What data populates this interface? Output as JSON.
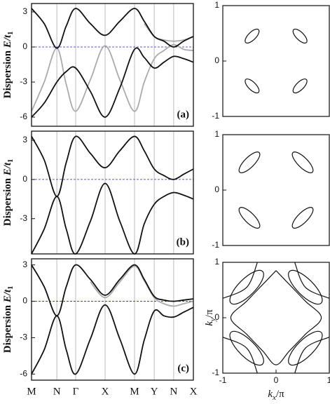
{
  "chart_data": [
    {
      "type": "line",
      "panel_label": "(a)",
      "ylabel": {
        "text": "Dispersion ",
        "var": "E",
        "rest": "/t",
        "sub": "1"
      },
      "ylim": [
        -6.78,
        3.72
      ],
      "yticks": [
        -6,
        -3,
        0,
        3
      ],
      "reference_line": 0,
      "reference_color": "#2222cc",
      "x": [
        0,
        0.43,
        0.86,
        1.18,
        1.5,
        2.0,
        2.5,
        3.0,
        3.5,
        3.83,
        4.17,
        4.5,
        4.83,
        5.17,
        5.5
      ],
      "series": [
        {
          "color": "#aaaaaa",
          "values": [
            -5.5,
            -3.0,
            -0.1,
            -3.2,
            -5.5,
            -2.8,
            0.1,
            -2.8,
            -5.5,
            -3.0,
            -1.0,
            -0.3,
            0.2,
            -0.2,
            -0.3
          ]
        },
        {
          "color": "#aaaaaa",
          "values": [
            null,
            null,
            null,
            null,
            null,
            null,
            null,
            null,
            null,
            2.0,
            0.9,
            0.6,
            0.5,
            0.6,
            0.9
          ]
        },
        {
          "color": "#111111",
          "values": [
            3.3,
            2.0,
            -0.1,
            1.8,
            3.3,
            2.0,
            1.0,
            2.2,
            3.3,
            2.2,
            0.9,
            0.5,
            0.0,
            0.5,
            0.9
          ]
        },
        {
          "color": "#111111",
          "values": [
            -6,
            -4.8,
            -3.0,
            -2.1,
            -1.8,
            -3.8,
            -6,
            -3.5,
            -0.2,
            -0.9,
            -1.8,
            -1.3,
            -0.8,
            -1.0,
            -1.3
          ]
        }
      ]
    },
    {
      "type": "contour",
      "xlim": [
        -1,
        1
      ],
      "ylim": [
        -1,
        1
      ],
      "yticks": [
        -1,
        0,
        1
      ],
      "ellipses": [
        {
          "cx": -0.45,
          "cy": 0.45,
          "rx": 0.17,
          "ry": 0.07,
          "angle": 45
        },
        {
          "cx": 0.45,
          "cy": 0.45,
          "rx": 0.17,
          "ry": 0.07,
          "angle": -45
        },
        {
          "cx": -0.45,
          "cy": -0.45,
          "rx": 0.17,
          "ry": 0.07,
          "angle": -45
        },
        {
          "cx": 0.45,
          "cy": -0.45,
          "rx": 0.17,
          "ry": 0.07,
          "angle": 45
        }
      ]
    },
    {
      "type": "line",
      "panel_label": "(b)",
      "ylabel": {
        "text": "Dispersion ",
        "var": "E",
        "rest": "/t",
        "sub": "1"
      },
      "ylim": [
        -5.7,
        3.7
      ],
      "yticks": [
        -3,
        0,
        3
      ],
      "reference_line": 0,
      "reference_color": "#2222cc",
      "x": [
        0,
        0.43,
        0.86,
        1.18,
        1.5,
        2.0,
        2.5,
        3.0,
        3.5,
        3.83,
        4.17,
        4.5,
        4.83,
        5.17,
        5.5
      ],
      "series": [
        {
          "color": "#111111",
          "values": [
            3.3,
            1.5,
            -1.3,
            1.3,
            3.3,
            2.0,
            0.9,
            2.2,
            3.3,
            2.2,
            0.8,
            0.3,
            0.0,
            0.4,
            0.8
          ]
        },
        {
          "color": "#111111",
          "values": [
            -5.7,
            -3.8,
            -1.3,
            -3.8,
            -5.7,
            -3.2,
            -0.3,
            -3.2,
            -5.7,
            -3.4,
            -1.9,
            -1.3,
            -1.0,
            -1.2,
            -1.5
          ]
        }
      ]
    },
    {
      "type": "contour",
      "xlim": [
        -1,
        1
      ],
      "ylim": [
        -1,
        1
      ],
      "yticks": [
        -1,
        0,
        1
      ],
      "ellipses": [
        {
          "cx": -0.5,
          "cy": 0.5,
          "rx": 0.26,
          "ry": 0.09,
          "angle": 45
        },
        {
          "cx": 0.5,
          "cy": 0.5,
          "rx": 0.26,
          "ry": 0.09,
          "angle": -45
        },
        {
          "cx": -0.5,
          "cy": -0.5,
          "rx": 0.26,
          "ry": 0.09,
          "angle": -45
        },
        {
          "cx": 0.5,
          "cy": -0.5,
          "rx": 0.26,
          "ry": 0.09,
          "angle": 45
        }
      ]
    },
    {
      "type": "line",
      "panel_label": "(c)",
      "ylabel": {
        "text": "Dispersion ",
        "var": "E",
        "rest": "/t",
        "sub": "1"
      },
      "ylim": [
        -6.5,
        3.5
      ],
      "yticks": [
        -6,
        -3,
        0,
        3
      ],
      "reference_line": 0,
      "reference_color": "#2222cc",
      "x": [
        0,
        0.43,
        0.86,
        1.18,
        1.5,
        2.0,
        2.5,
        3.0,
        3.5,
        3.83,
        4.17,
        4.5,
        4.83,
        5.17,
        5.5
      ],
      "xticks": [
        {
          "value": 0,
          "label": "M"
        },
        {
          "value": 0.86,
          "label": "N"
        },
        {
          "value": 1.5,
          "label": "Γ"
        },
        {
          "value": 2.5,
          "label": "X"
        },
        {
          "value": 3.5,
          "label": "M"
        },
        {
          "value": 4.17,
          "label": "Y"
        },
        {
          "value": 4.83,
          "label": "N"
        },
        {
          "value": 5.5,
          "label": "X"
        }
      ],
      "series": [
        {
          "color": "#aaaaaa",
          "values": [
            null,
            null,
            null,
            null,
            null,
            1.6,
            0.3,
            1.6,
            2.9,
            1.7,
            0.3,
            -0.2,
            -0.4,
            -0.2,
            0.0
          ]
        },
        {
          "color": "#111111",
          "values": [
            3.0,
            1.2,
            -1.2,
            1.2,
            3.0,
            1.8,
            0.5,
            1.8,
            3.0,
            1.8,
            0.4,
            0.1,
            0.0,
            0.1,
            0.2
          ]
        },
        {
          "color": "#111111",
          "values": [
            -6,
            -4.0,
            -1.2,
            -4.0,
            -6,
            -3.1,
            -0.3,
            -3.1,
            -6,
            -3.2,
            -0.8,
            -1.2,
            -1.3,
            -0.9,
            -0.5
          ]
        }
      ]
    },
    {
      "type": "contour",
      "xlim": [
        -1,
        1
      ],
      "ylim": [
        -1,
        1
      ],
      "xticks": [
        -1,
        0,
        1
      ],
      "yticks": [
        -1,
        0,
        1
      ],
      "xlabel": {
        "var": "k",
        "sub": "x",
        "rest": "/π"
      },
      "ylabel": {
        "var": "k",
        "sub": "y",
        "rest": "/π"
      },
      "ellipses": [
        {
          "cx": -0.55,
          "cy": 0.55,
          "rx": 0.42,
          "ry": 0.15,
          "angle": 45
        },
        {
          "cx": 0.55,
          "cy": 0.55,
          "rx": 0.42,
          "ry": 0.15,
          "angle": -45
        },
        {
          "cx": -0.55,
          "cy": -0.55,
          "rx": 0.42,
          "ry": 0.15,
          "angle": -45
        },
        {
          "cx": 0.55,
          "cy": -0.55,
          "rx": 0.42,
          "ry": 0.15,
          "angle": 45
        }
      ],
      "curves": [
        {
          "x": [
            0,
            0.25,
            0.55,
            0.85,
            0.55,
            0.25,
            0,
            -0.25,
            -0.55,
            -0.85,
            -0.55,
            -0.25,
            0
          ],
          "y": [
            0.85,
            0.6,
            0.3,
            0,
            -0.3,
            -0.6,
            -0.85,
            -0.6,
            -0.3,
            0,
            0.3,
            0.6,
            0.85
          ]
        },
        {
          "x": [
            0.35,
            0.55,
            1
          ],
          "y": [
            1,
            0.55,
            0.35
          ]
        },
        {
          "x": [
            -0.35,
            -0.55,
            -1
          ],
          "y": [
            1,
            0.55,
            0.35
          ]
        },
        {
          "x": [
            0.35,
            0.55,
            1
          ],
          "y": [
            -1,
            -0.55,
            -0.35
          ]
        },
        {
          "x": [
            -0.35,
            -0.55,
            -1
          ],
          "y": [
            -1,
            -0.55,
            -0.35
          ]
        }
      ]
    }
  ]
}
